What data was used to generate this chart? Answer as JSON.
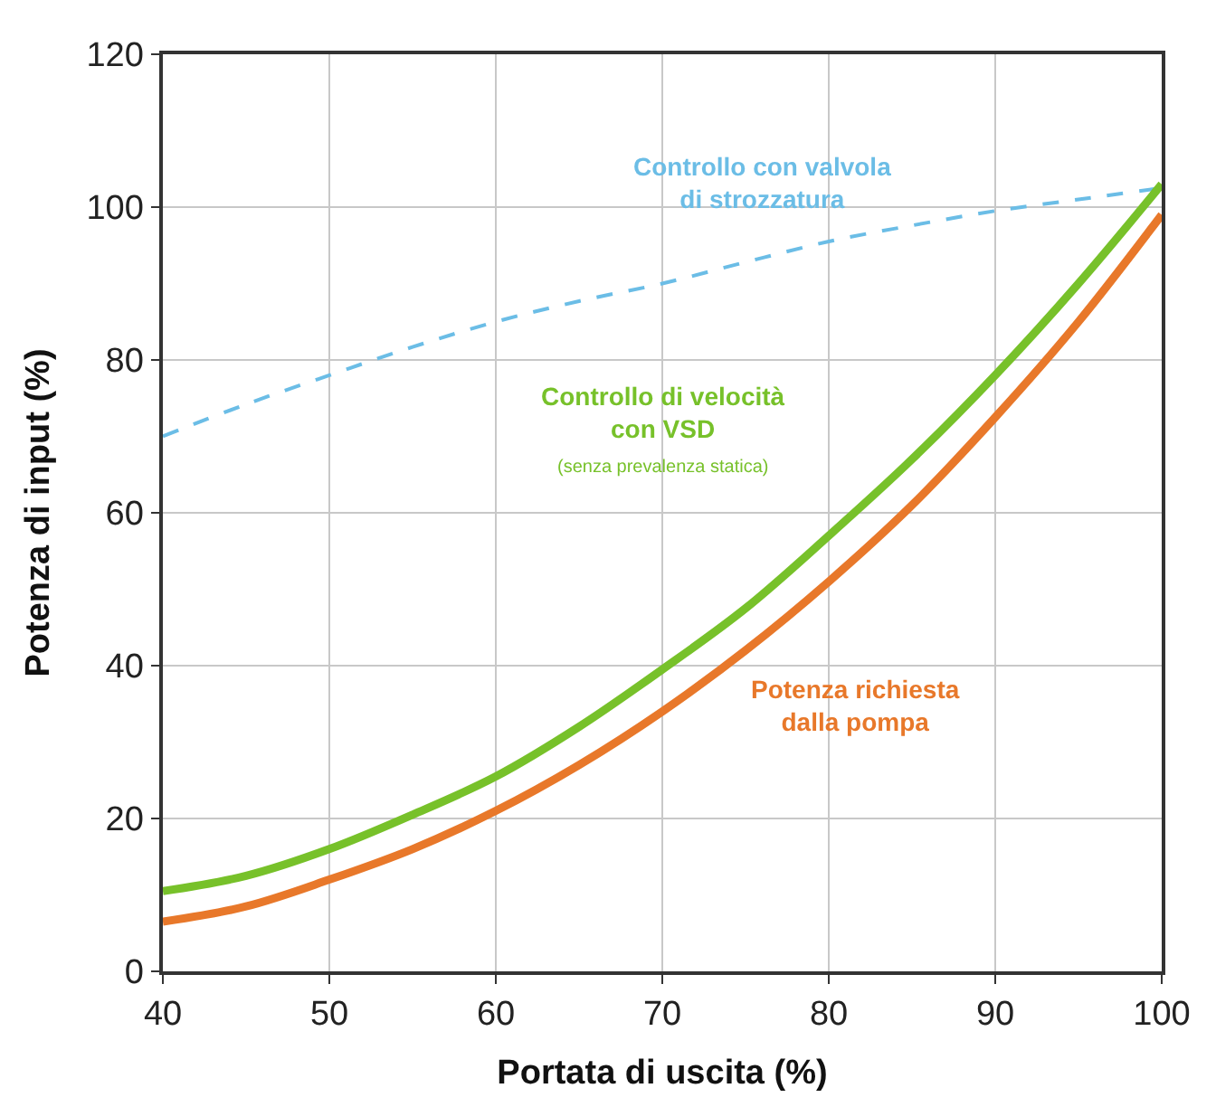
{
  "chart_data": {
    "type": "line",
    "xlabel": "Portata di uscita (%)",
    "ylabel": "Potenza di input (%)",
    "x": [
      40,
      45,
      50,
      55,
      60,
      65,
      70,
      75,
      80,
      85,
      90,
      95,
      100
    ],
    "series": [
      {
        "name": "Controllo con valvola\ndi strozzatura",
        "color": "#6bbde6",
        "line_style": "dashed",
        "values": [
          70,
          74.2,
          78,
          81.7,
          85,
          87.7,
          90,
          92.8,
          95.5,
          97.6,
          99.5,
          101,
          102.5
        ]
      },
      {
        "name": "Controllo di velocità\ncon VSD",
        "color": "#77c12a",
        "values": [
          10.5,
          12.5,
          16,
          20.5,
          25.5,
          32,
          39.5,
          47.5,
          57,
          67,
          78,
          90,
          103
        ]
      },
      {
        "name": "Potenza richiesta\ndalla pompa",
        "color": "#e8782a",
        "values": [
          6.5,
          8.5,
          12,
          16,
          21,
          27,
          34,
          42,
          51,
          61,
          72.5,
          85,
          99
        ]
      }
    ],
    "annotations": [
      "(senza prevalenza statica)"
    ],
    "xlim": [
      40,
      100
    ],
    "ylim": [
      0,
      120
    ],
    "xticks": [
      40,
      50,
      60,
      70,
      80,
      90,
      100
    ],
    "yticks": [
      0,
      20,
      40,
      60,
      80,
      100,
      120
    ],
    "grid": true,
    "legend": false,
    "marker": "none"
  }
}
